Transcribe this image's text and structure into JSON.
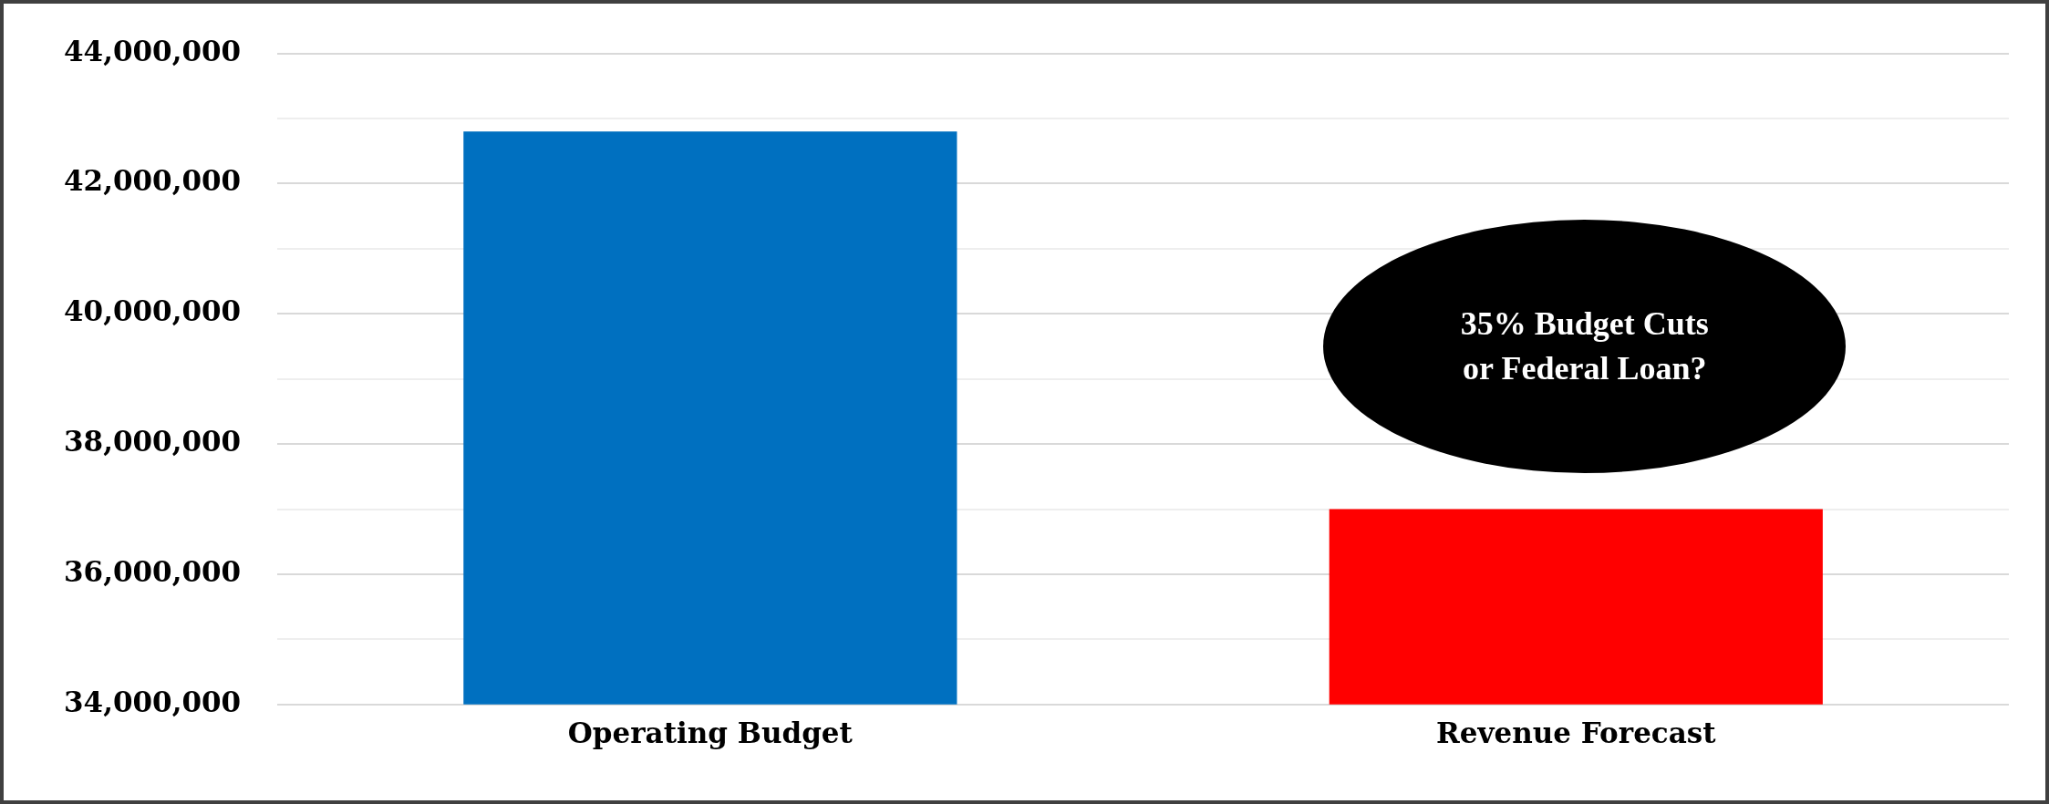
{
  "chart_data": {
    "type": "bar",
    "categories": [
      "Operating Budget",
      "Revenue Forecast"
    ],
    "values": [
      42800000,
      37000000
    ],
    "colors": [
      "#0070c0",
      "#ff0000"
    ],
    "ylim": [
      34000000,
      44000000
    ],
    "yticks": [
      {
        "value": 34000000,
        "label": "34,000,000"
      },
      {
        "value": 35000000,
        "label": null
      },
      {
        "value": 36000000,
        "label": "36,000,000"
      },
      {
        "value": 37000000,
        "label": null
      },
      {
        "value": 38000000,
        "label": "38,000,000"
      },
      {
        "value": 39000000,
        "label": null
      },
      {
        "value": 40000000,
        "label": "40,000,000"
      },
      {
        "value": 41000000,
        "label": null
      },
      {
        "value": 42000000,
        "label": "42,000,000"
      },
      {
        "value": 43000000,
        "label": null
      },
      {
        "value": 44000000,
        "label": "44,000,000"
      }
    ],
    "grid": "y",
    "legend": false,
    "annotations": [
      "35% Budget Cuts or Federal Loan?"
    ]
  }
}
